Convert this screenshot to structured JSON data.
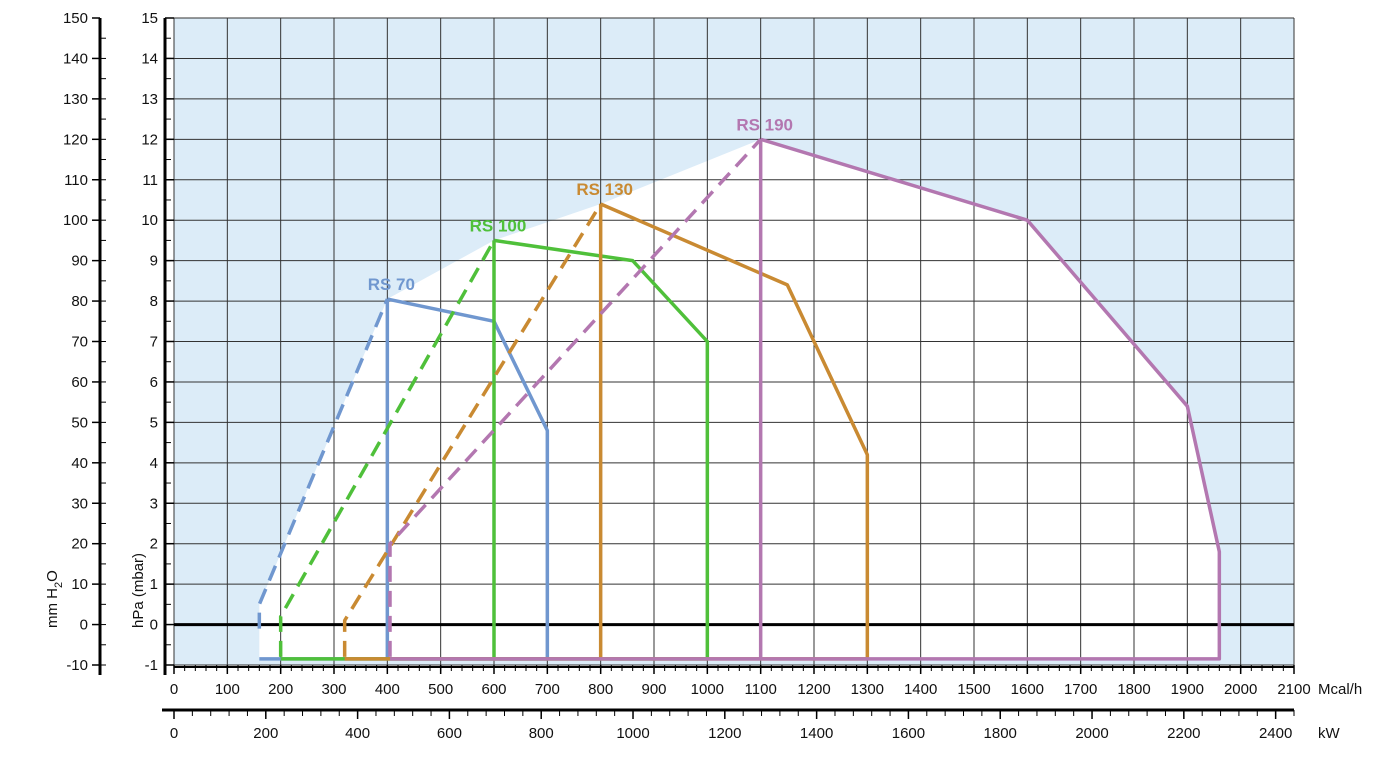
{
  "chart_data": {
    "type": "line",
    "title": "",
    "x_axes": [
      {
        "unit": "Mcal/h",
        "range": [
          0,
          2100
        ],
        "ticks": [
          0,
          100,
          200,
          300,
          400,
          500,
          600,
          700,
          800,
          900,
          1000,
          1100,
          1200,
          1300,
          1400,
          1500,
          1600,
          1700,
          1800,
          1900,
          2000,
          2100
        ]
      },
      {
        "unit": "kW",
        "range": [
          0,
          2440
        ],
        "ticks": [
          0,
          200,
          400,
          600,
          800,
          1000,
          1200,
          1400,
          1600,
          1800,
          2000,
          2200,
          2400
        ]
      }
    ],
    "y_axes": [
      {
        "label": "hPa (mbar)",
        "range": [
          -1,
          15
        ],
        "ticks": [
          -1,
          0,
          1,
          2,
          3,
          4,
          5,
          6,
          7,
          8,
          9,
          10,
          11,
          12,
          13,
          14,
          15
        ]
      },
      {
        "label_parts": [
          "mm H",
          "2",
          "O"
        ],
        "range": [
          -10,
          150
        ],
        "ticks": [
          -10,
          0,
          10,
          20,
          30,
          40,
          50,
          60,
          70,
          80,
          90,
          100,
          110,
          120,
          130,
          140,
          150
        ]
      }
    ],
    "grid": true,
    "background": "#dcecf8",
    "plot_background_inside": "#ffffff",
    "series": [
      {
        "name": "RS 70",
        "color": "#7097cf",
        "start": [
          160,
          0.5
        ],
        "dashed": [
          [
            160,
            -0.1
          ],
          [
            160,
            0.5
          ],
          [
            400,
            8.05
          ]
        ],
        "solid": [
          [
            400,
            8.05
          ],
          [
            600,
            7.5
          ],
          [
            700,
            4.8
          ],
          [
            700,
            -0.85
          ],
          [
            160,
            -0.85
          ]
        ],
        "lower_vertical": [
          [
            400,
            -0.85
          ],
          [
            400,
            8.05
          ]
        ]
      },
      {
        "name": "RS 100",
        "color": "#4fc03a",
        "dashed": [
          [
            200,
            -0.8
          ],
          [
            200,
            0.2
          ],
          [
            600,
            9.5
          ]
        ],
        "solid": [
          [
            600,
            9.5
          ],
          [
            860,
            9.0
          ],
          [
            1000,
            7.0
          ],
          [
            1000,
            -0.85
          ],
          [
            200,
            -0.85
          ]
        ],
        "lower_vertical": [
          [
            600,
            -0.85
          ],
          [
            600,
            9.5
          ]
        ]
      },
      {
        "name": "RS 130",
        "color": "#c98a32",
        "dashed": [
          [
            320,
            -0.8
          ],
          [
            320,
            0.1
          ],
          [
            800,
            10.4
          ]
        ],
        "solid": [
          [
            800,
            10.4
          ],
          [
            1150,
            8.4
          ],
          [
            1300,
            4.2
          ],
          [
            1300,
            -0.85
          ],
          [
            320,
            -0.85
          ]
        ],
        "lower_vertical": [
          [
            800,
            -0.85
          ],
          [
            800,
            10.4
          ]
        ]
      },
      {
        "name": "RS 190",
        "color": "#b377b0",
        "dashed": [
          [
            405,
            -0.8
          ],
          [
            405,
            2.0
          ],
          [
            1100,
            12.0
          ]
        ],
        "solid": [
          [
            1100,
            12.0
          ],
          [
            1600,
            10.0
          ],
          [
            1900,
            5.4
          ],
          [
            1960,
            1.8
          ],
          [
            1960,
            -0.85
          ],
          [
            405,
            -0.85
          ]
        ],
        "lower_vertical": [
          [
            1100,
            -0.85
          ],
          [
            1100,
            12.0
          ]
        ]
      }
    ]
  }
}
